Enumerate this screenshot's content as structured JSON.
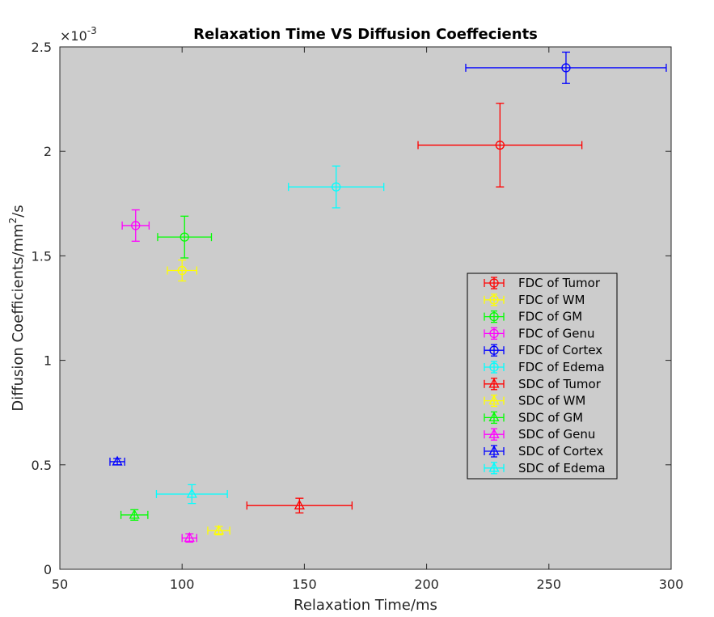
{
  "chart_data": {
    "type": "scatter",
    "title": "Relaxation Time VS Diffusion Coeffecients",
    "xlabel": "Relaxation Time/ms",
    "ylabel_prefix": "Diffusion Coefficients/mm",
    "ylabel_sup": "2",
    "ylabel_suffix": "/s",
    "exponent_base": "×10",
    "exponent_power": "-3",
    "xlim": [
      50,
      300
    ],
    "ylim": [
      0,
      2.5
    ],
    "x_ticks": [
      50,
      100,
      150,
      200,
      250,
      300
    ],
    "x_tick_labels": [
      "50",
      "100",
      "150",
      "200",
      "250",
      "300"
    ],
    "y_ticks": [
      0,
      0.5,
      1,
      1.5,
      2,
      2.5
    ],
    "y_tick_labels": [
      "0",
      "0.5",
      "1",
      "1.5",
      "2",
      "2.5"
    ],
    "axes_background": "#cccccc",
    "legend_position": "center-right",
    "series": [
      {
        "name": "FDC of Tumor",
        "color": "#ff0000",
        "marker": "circle",
        "x": 230,
        "x_err": 33.5,
        "y": 2.03,
        "y_err": 0.2
      },
      {
        "name": "FDC of WM",
        "color": "#ffff00",
        "marker": "circle",
        "x": 100,
        "x_err": 6,
        "y": 1.43,
        "y_err": 0.05
      },
      {
        "name": "FDC of GM",
        "color": "#00ff00",
        "marker": "circle",
        "x": 101,
        "x_err": 11,
        "y": 1.59,
        "y_err": 0.1
      },
      {
        "name": "FDC of Genu",
        "color": "#ff00ff",
        "marker": "circle",
        "x": 81,
        "x_err": 5.5,
        "y": 1.645,
        "y_err": 0.075
      },
      {
        "name": "FDC of Cortex",
        "color": "#0000ff",
        "marker": "circle",
        "x": 257,
        "x_err": 41,
        "y": 2.4,
        "y_err": 0.075
      },
      {
        "name": "FDC of Edema",
        "color": "#00ffff",
        "marker": "circle",
        "x": 163,
        "x_err": 19.5,
        "y": 1.83,
        "y_err": 0.1
      },
      {
        "name": "SDC of Tumor",
        "color": "#ff0000",
        "marker": "triangle",
        "x": 148,
        "x_err": 21.5,
        "y": 0.305,
        "y_err": 0.035
      },
      {
        "name": "SDC of WM",
        "color": "#ffff00",
        "marker": "triangle",
        "x": 115,
        "x_err": 4.5,
        "y": 0.185,
        "y_err": 0.02
      },
      {
        "name": "SDC of GM",
        "color": "#00ff00",
        "marker": "triangle",
        "x": 80.5,
        "x_err": 5.5,
        "y": 0.26,
        "y_err": 0.025
      },
      {
        "name": "SDC of Genu",
        "color": "#ff00ff",
        "marker": "triangle",
        "x": 103,
        "x_err": 3,
        "y": 0.15,
        "y_err": 0.02
      },
      {
        "name": "SDC of Cortex",
        "color": "#0000ff",
        "marker": "triangle",
        "x": 73.5,
        "x_err": 3,
        "y": 0.515,
        "y_err": 0.015
      },
      {
        "name": "SDC of Edema",
        "color": "#00ffff",
        "marker": "triangle",
        "x": 104,
        "x_err": 14.5,
        "y": 0.36,
        "y_err": 0.045
      }
    ]
  }
}
